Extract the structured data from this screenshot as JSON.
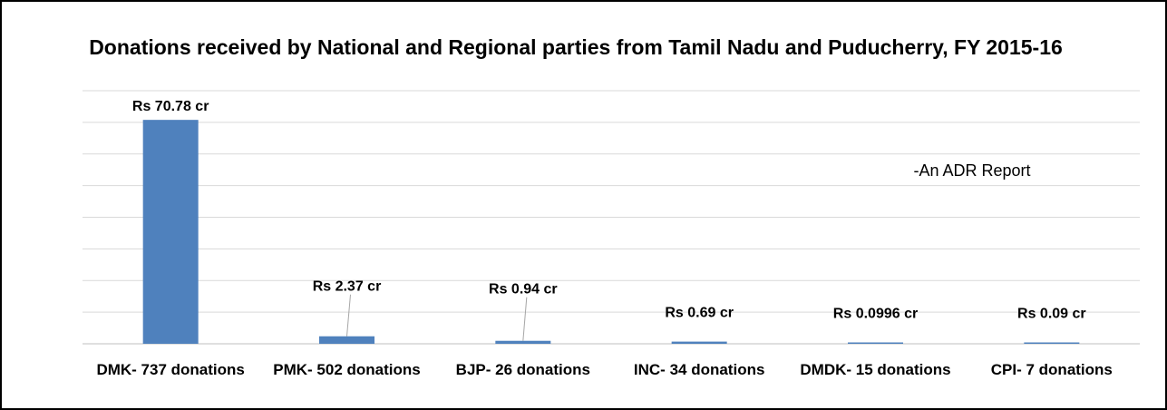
{
  "chart_data": {
    "type": "bar",
    "title": "Donations received by National and Regional parties from Tamil Nadu and Puducherry, FY 2015-16",
    "annotation": "-An ADR Report",
    "categories": [
      "DMK- 737 donations",
      "PMK- 502 donations",
      "BJP- 26 donations",
      "INC- 34 donations",
      "DMDK- 15 donations",
      "CPI- 7 donations"
    ],
    "values": [
      70.78,
      2.37,
      0.94,
      0.69,
      0.0996,
      0.09
    ],
    "data_labels": [
      "Rs 70.78 cr",
      "Rs 2.37 cr",
      "Rs 0.94 cr",
      "Rs 0.69 cr",
      "Rs 0.0996 cr",
      "Rs 0.09 cr"
    ],
    "xlabel": "",
    "ylabel": "",
    "ylim": [
      0,
      80
    ],
    "grid": true,
    "legend": "none",
    "bar_color": "#4f81bd"
  }
}
